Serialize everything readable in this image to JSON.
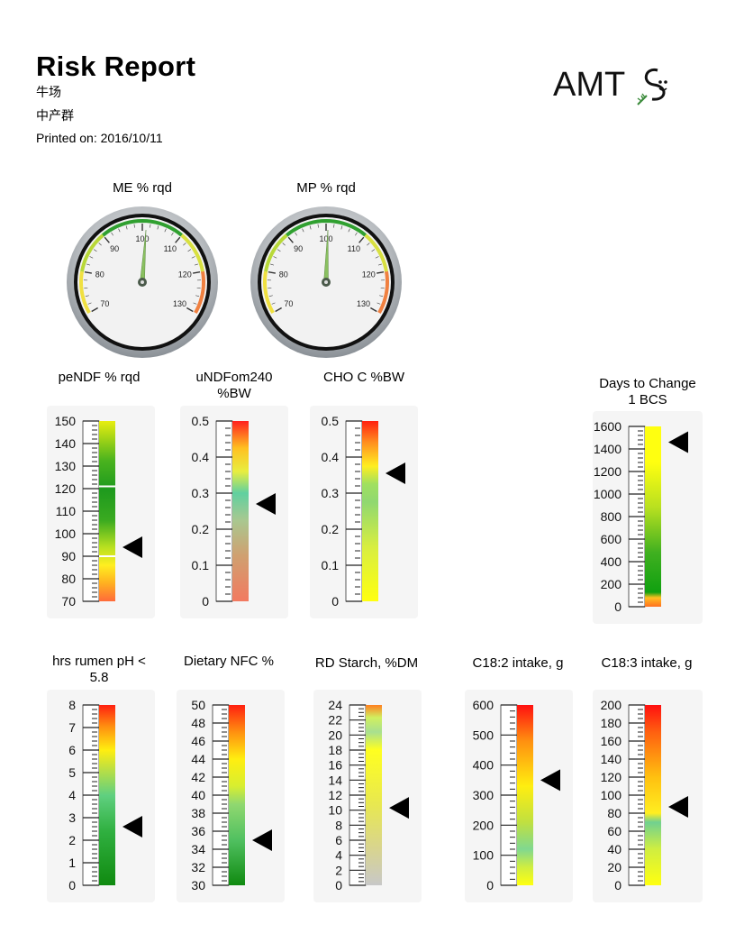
{
  "header": {
    "title": "Risk Report",
    "farm": "牛场",
    "group": "中产群",
    "printed": "Printed on: 2016/10/11"
  },
  "logo": {
    "text": "AMTS",
    "name": "amts-logo"
  },
  "gauges": [
    {
      "id": "me",
      "title": "ME % rqd",
      "labels": [
        70,
        80,
        90,
        100,
        110,
        120,
        130
      ],
      "value": 101
    },
    {
      "id": "mp",
      "title": "MP % rqd",
      "labels": [
        70,
        80,
        90,
        100,
        110,
        120,
        130
      ],
      "value": 100.5
    }
  ],
  "bars": [
    {
      "id": "pendf",
      "title_lines": [
        "peNDF % rqd"
      ],
      "ticks": [
        70,
        80,
        90,
        100,
        110,
        120,
        130,
        140,
        150
      ],
      "min": 70,
      "max": 150,
      "value": 94,
      "stops": [
        [
          0,
          "#ff6a3a"
        ],
        [
          0.1,
          "#ffb020"
        ],
        [
          0.2,
          "#ffee20"
        ],
        [
          0.3,
          "#b8e020"
        ],
        [
          0.45,
          "#3aaa20"
        ],
        [
          0.62,
          "#1e9a1e"
        ],
        [
          0.78,
          "#4ab31e"
        ],
        [
          1,
          "#e8ee10"
        ]
      ],
      "markers": [
        90,
        121
      ],
      "color": "#fff"
    },
    {
      "id": "undf",
      "title_lines": [
        "uNDFom240",
        "%BW"
      ],
      "ticks": [
        "0",
        "0.1",
        "0.2",
        "0.3",
        "0.4",
        "0.5"
      ],
      "min": 0,
      "max": 0.5,
      "value": 0.27,
      "stops": [
        [
          0,
          "#f27a60"
        ],
        [
          0.25,
          "#d0a070"
        ],
        [
          0.45,
          "#a8c890"
        ],
        [
          0.6,
          "#60d0a0"
        ],
        [
          0.72,
          "#e8ee40"
        ],
        [
          0.85,
          "#ffc020"
        ],
        [
          1,
          "#ff2020"
        ]
      ]
    },
    {
      "id": "cho",
      "title_lines": [
        "CHO C %BW"
      ],
      "ticks": [
        "0",
        "0.1",
        "0.2",
        "0.3",
        "0.4",
        "0.5"
      ],
      "min": 0,
      "max": 0.5,
      "value": 0.355,
      "stops": [
        [
          0,
          "#ffff10"
        ],
        [
          0.3,
          "#d8ee40"
        ],
        [
          0.55,
          "#90d870"
        ],
        [
          0.65,
          "#a0e060"
        ],
        [
          0.75,
          "#ffee20"
        ],
        [
          0.88,
          "#ff9020"
        ],
        [
          1,
          "#ff2010"
        ]
      ]
    },
    {
      "id": "days",
      "title_lines": [
        "Days to Change",
        "1 BCS"
      ],
      "ticks": [
        0,
        200,
        400,
        600,
        800,
        1000,
        1200,
        1400,
        1600
      ],
      "min": 0,
      "max": 1600,
      "value": 1460,
      "stops": [
        [
          0,
          "#ff7020"
        ],
        [
          0.05,
          "#ffc020"
        ],
        [
          0.08,
          "#10a010"
        ],
        [
          0.3,
          "#40b020"
        ],
        [
          0.55,
          "#b8e020"
        ],
        [
          0.8,
          "#ffff10"
        ],
        [
          1,
          "#ffff10"
        ]
      ]
    },
    {
      "id": "rumen",
      "title_lines": [
        "hrs rumen pH <",
        "5.8"
      ],
      "ticks": [
        0,
        1,
        2,
        3,
        4,
        5,
        6,
        7,
        8
      ],
      "min": 0,
      "max": 8,
      "value": 2.6,
      "stops": [
        [
          0,
          "#108a10"
        ],
        [
          0.3,
          "#30b040"
        ],
        [
          0.5,
          "#60d080"
        ],
        [
          0.65,
          "#c0e040"
        ],
        [
          0.75,
          "#ffee10"
        ],
        [
          0.88,
          "#ff9010"
        ],
        [
          1,
          "#ff2010"
        ]
      ]
    },
    {
      "id": "nfc",
      "title_lines": [
        "Dietary NFC %"
      ],
      "ticks": [
        30,
        32,
        34,
        36,
        38,
        40,
        42,
        44,
        46,
        48,
        50
      ],
      "min": 30,
      "max": 50,
      "value": 35,
      "stops": [
        [
          0,
          "#108a10"
        ],
        [
          0.25,
          "#50c060"
        ],
        [
          0.45,
          "#90d870"
        ],
        [
          0.55,
          "#d8ee30"
        ],
        [
          0.7,
          "#ffee10"
        ],
        [
          0.85,
          "#ff9010"
        ],
        [
          1,
          "#ff2010"
        ]
      ]
    },
    {
      "id": "rdstarch",
      "title_lines": [
        "RD Starch, %DM"
      ],
      "ticks": [
        0,
        2,
        4,
        6,
        8,
        10,
        12,
        14,
        16,
        18,
        20,
        22,
        24
      ],
      "min": 0,
      "max": 24,
      "value": 10.3,
      "stops": [
        [
          0,
          "#c8c8c8"
        ],
        [
          0.2,
          "#d8d490"
        ],
        [
          0.45,
          "#e8e850"
        ],
        [
          0.75,
          "#ffff20"
        ],
        [
          0.85,
          "#a8e090"
        ],
        [
          0.93,
          "#d0f060"
        ],
        [
          1,
          "#ff8020"
        ]
      ]
    },
    {
      "id": "c182",
      "title_lines": [
        "C18:2 intake, g"
      ],
      "ticks": [
        0,
        100,
        200,
        300,
        400,
        500,
        600
      ],
      "min": 0,
      "max": 600,
      "value": 350,
      "stops": [
        [
          0,
          "#ffff10"
        ],
        [
          0.1,
          "#d0ee40"
        ],
        [
          0.2,
          "#80d890"
        ],
        [
          0.35,
          "#c0e040"
        ],
        [
          0.55,
          "#ffee10"
        ],
        [
          0.8,
          "#ff9010"
        ],
        [
          1,
          "#ff1010"
        ]
      ]
    },
    {
      "id": "c183",
      "title_lines": [
        "C18:3 intake, g"
      ],
      "ticks": [
        0,
        20,
        40,
        60,
        80,
        100,
        120,
        140,
        160,
        180,
        200
      ],
      "min": 0,
      "max": 200,
      "value": 87,
      "stops": [
        [
          0,
          "#ffff10"
        ],
        [
          0.2,
          "#d0ee40"
        ],
        [
          0.35,
          "#70d090"
        ],
        [
          0.4,
          "#ffee20"
        ],
        [
          0.6,
          "#ffc010"
        ],
        [
          0.85,
          "#ff6010"
        ],
        [
          1,
          "#ff1010"
        ]
      ]
    }
  ]
}
